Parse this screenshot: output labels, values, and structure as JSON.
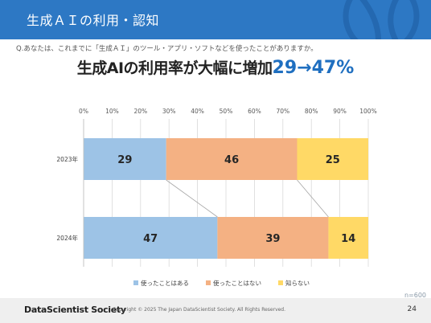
{
  "header": {
    "title": "生成ＡＩの利用・認知"
  },
  "question": "Q.あなたは、これまでに「生成ＡＩ」のツール・アプリ・ソフトなどを使ったことがありますか。",
  "headline": {
    "main": "生成AIの利用率が大幅に増加",
    "accent": "29→47%"
  },
  "chart_data": {
    "type": "bar",
    "orientation": "horizontal",
    "stacked": true,
    "percent_scale": true,
    "categories": [
      "2023年",
      "2024年"
    ],
    "series": [
      {
        "name": "使ったことはある",
        "values": [
          29,
          47
        ],
        "color": "#9dc3e6"
      },
      {
        "name": "使ったことはない",
        "values": [
          46,
          39
        ],
        "color": "#f4b183"
      },
      {
        "name": "知らない",
        "values": [
          25,
          14
        ],
        "color": "#ffd966"
      }
    ],
    "x_ticks": [
      "0%",
      "10%",
      "20%",
      "30%",
      "40%",
      "50%",
      "60%",
      "70%",
      "80%",
      "90%",
      "100%"
    ],
    "xlim": [
      0,
      100
    ],
    "grid": true,
    "legend_position": "bottom",
    "connector_lines": true
  },
  "sample_size": "n=600",
  "footer": {
    "brand": "DataScientist Society",
    "copyright": "Copyright © 2025 The Japan DataScientist Society. All Rights Reserved.",
    "page": "24"
  },
  "colors": {
    "header": "#2d78c4",
    "accent": "#1f6fc0"
  }
}
